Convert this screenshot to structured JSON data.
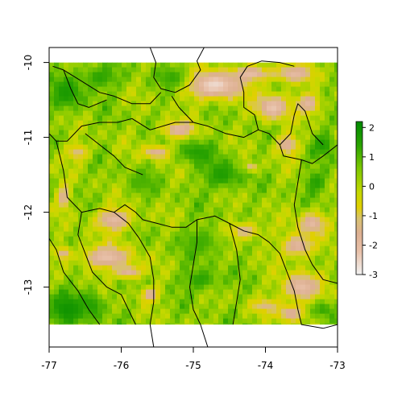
{
  "map": {
    "x_axis": {
      "range": [
        -77,
        -73
      ],
      "ticks": [
        {
          "value": -77,
          "label": "-77"
        },
        {
          "value": -76,
          "label": "-76"
        },
        {
          "value": -75,
          "label": "-75"
        },
        {
          "value": -74,
          "label": "-74"
        },
        {
          "value": -73,
          "label": "-73"
        }
      ]
    },
    "y_axis": {
      "range": [
        -13.8,
        -9.8
      ],
      "ticks": [
        {
          "value": -10,
          "label": "-10"
        },
        {
          "value": -11,
          "label": "-11"
        },
        {
          "value": -12,
          "label": "-12"
        },
        {
          "value": -13,
          "label": "-13"
        }
      ]
    },
    "raster_extent": {
      "lon": [
        -77,
        -73
      ],
      "lat": [
        -13.5,
        -10
      ]
    },
    "legend": {
      "range": [
        -3,
        2.2
      ],
      "ticks": [
        {
          "value": 2,
          "label": "2"
        },
        {
          "value": 1,
          "label": "1"
        },
        {
          "value": 0,
          "label": "0"
        },
        {
          "value": -1,
          "label": "-1"
        },
        {
          "value": -2,
          "label": "-2"
        },
        {
          "value": -3,
          "label": "-3"
        }
      ],
      "colors": [
        "#f2f2f2",
        "#e8c0a8",
        "#ddb092",
        "#d8c270",
        "#e0d000",
        "#c4d800",
        "#7ec800",
        "#2aa300",
        "#008a00"
      ],
      "stops": [
        -3,
        -2.2,
        -1.6,
        -1.1,
        -0.7,
        -0.2,
        0.6,
        1.4,
        2.2
      ]
    },
    "highlands": [
      {
        "lon": -74.7,
        "lat": -10.3,
        "rx": 0.55,
        "ry": 0.25,
        "v": -2.6
      },
      {
        "lon": -74.2,
        "lat": -10.15,
        "rx": 0.35,
        "ry": 0.12,
        "v": -2.1
      },
      {
        "lon": -73.6,
        "lat": -10.15,
        "rx": 0.35,
        "ry": 0.15,
        "v": -2.0
      },
      {
        "lon": -73.9,
        "lat": -10.6,
        "rx": 0.3,
        "ry": 0.22,
        "v": -2.3
      },
      {
        "lon": -73.4,
        "lat": -10.55,
        "rx": 0.22,
        "ry": 0.18,
        "v": -1.9
      },
      {
        "lon": -75.2,
        "lat": -10.9,
        "rx": 0.3,
        "ry": 0.15,
        "v": -2.0
      },
      {
        "lon": -75.5,
        "lat": -11.2,
        "rx": 0.25,
        "ry": 0.12,
        "v": -1.8
      },
      {
        "lon": -74.2,
        "lat": -11.4,
        "rx": 0.12,
        "ry": 0.08,
        "v": -1.7
      },
      {
        "lon": -73.7,
        "lat": -11.1,
        "rx": 0.2,
        "ry": 0.18,
        "v": -1.8
      },
      {
        "lon": -73.35,
        "lat": -12.15,
        "rx": 0.25,
        "ry": 0.2,
        "v": -2.0
      },
      {
        "lon": -73.55,
        "lat": -12.45,
        "rx": 0.3,
        "ry": 0.2,
        "v": -1.9
      },
      {
        "lon": -73.5,
        "lat": -13.0,
        "rx": 0.35,
        "ry": 0.25,
        "v": -2.1
      },
      {
        "lon": -73.65,
        "lat": -13.35,
        "rx": 0.25,
        "ry": 0.15,
        "v": -1.8
      },
      {
        "lon": -76.1,
        "lat": -12.1,
        "rx": 0.35,
        "ry": 0.2,
        "v": -2.0
      },
      {
        "lon": -76.2,
        "lat": -12.6,
        "rx": 0.45,
        "ry": 0.2,
        "v": -2.2
      },
      {
        "lon": -75.9,
        "lat": -12.8,
        "rx": 0.25,
        "ry": 0.12,
        "v": -1.8
      },
      {
        "lon": -76.8,
        "lat": -11.8,
        "rx": 0.12,
        "ry": 0.22,
        "v": -1.7
      },
      {
        "lon": -76.8,
        "lat": -12.55,
        "rx": 0.12,
        "ry": 0.12,
        "v": -1.7
      },
      {
        "lon": -75.6,
        "lat": -13.1,
        "rx": 0.18,
        "ry": 0.12,
        "v": -1.8
      },
      {
        "lon": -74.3,
        "lat": -12.25,
        "rx": 0.3,
        "ry": 0.15,
        "v": -1.5
      },
      {
        "lon": -74.0,
        "lat": -13.25,
        "rx": 0.25,
        "ry": 0.12,
        "v": -1.4
      },
      {
        "lon": -76.6,
        "lat": -11.2,
        "rx": 0.2,
        "ry": 0.15,
        "v": -1.3
      }
    ],
    "lowlands": [
      {
        "lon": -76.75,
        "lat": -10.4,
        "rx": 0.3,
        "ry": 0.3,
        "v": 1.7
      },
      {
        "lon": -76.3,
        "lat": -10.2,
        "rx": 0.35,
        "ry": 0.2,
        "v": 1.4
      },
      {
        "lon": -75.3,
        "lat": -10.2,
        "rx": 0.3,
        "ry": 0.2,
        "v": 1.3
      },
      {
        "lon": -76.75,
        "lat": -13.3,
        "rx": 0.35,
        "ry": 0.3,
        "v": 1.9
      },
      {
        "lon": -76.4,
        "lat": -13.25,
        "rx": 0.2,
        "ry": 0.25,
        "v": 1.5
      },
      {
        "lon": -74.95,
        "lat": -11.2,
        "rx": 0.35,
        "ry": 0.2,
        "v": 1.5
      },
      {
        "lon": -74.6,
        "lat": -11.5,
        "rx": 0.35,
        "ry": 0.25,
        "v": 1.6
      },
      {
        "lon": -73.2,
        "lat": -11.1,
        "rx": 0.2,
        "ry": 0.2,
        "v": 1.6
      },
      {
        "lon": -73.3,
        "lat": -11.6,
        "rx": 0.2,
        "ry": 0.2,
        "v": 1.5
      },
      {
        "lon": -74.9,
        "lat": -12.4,
        "rx": 0.4,
        "ry": 0.25,
        "v": 1.2
      },
      {
        "lon": -74.9,
        "lat": -12.9,
        "rx": 0.35,
        "ry": 0.2,
        "v": 1.4
      },
      {
        "lon": -73.2,
        "lat": -13.3,
        "rx": 0.2,
        "ry": 0.15,
        "v": 1.3
      },
      {
        "lon": -75.7,
        "lat": -11.6,
        "rx": 0.3,
        "ry": 0.2,
        "v": 1.1
      }
    ],
    "boundaries": [
      [
        [
          -75.6,
          -9.8
        ],
        [
          -75.52,
          -10.0
        ],
        [
          -75.55,
          -10.2
        ],
        [
          -75.45,
          -10.35
        ],
        [
          -75.25,
          -10.4
        ],
        [
          -75.05,
          -10.3
        ],
        [
          -74.9,
          -10.1
        ],
        [
          -74.95,
          -9.98
        ],
        [
          -74.85,
          -9.8
        ]
      ],
      [
        [
          -76.95,
          -10.05
        ],
        [
          -76.8,
          -10.1
        ],
        [
          -76.55,
          -10.25
        ],
        [
          -76.3,
          -10.4
        ],
        [
          -76.1,
          -10.45
        ],
        [
          -75.85,
          -10.55
        ],
        [
          -75.6,
          -10.55
        ],
        [
          -75.45,
          -10.4
        ]
      ],
      [
        [
          -76.8,
          -10.1
        ],
        [
          -76.7,
          -10.35
        ],
        [
          -76.6,
          -10.55
        ],
        [
          -76.45,
          -10.6
        ],
        [
          -76.2,
          -10.5
        ]
      ],
      [
        [
          -77.0,
          -10.95
        ],
        [
          -76.9,
          -11.05
        ],
        [
          -76.75,
          -11.05
        ],
        [
          -76.55,
          -10.85
        ],
        [
          -76.3,
          -10.8
        ],
        [
          -76.05,
          -10.8
        ],
        [
          -75.85,
          -10.75
        ],
        [
          -75.6,
          -10.9
        ],
        [
          -75.25,
          -10.8
        ],
        [
          -75.0,
          -10.8
        ],
        [
          -74.8,
          -10.85
        ],
        [
          -74.55,
          -10.95
        ],
        [
          -74.3,
          -11.0
        ],
        [
          -74.1,
          -10.9
        ],
        [
          -73.95,
          -10.95
        ],
        [
          -73.8,
          -11.1
        ],
        [
          -73.75,
          -11.25
        ],
        [
          -73.5,
          -11.3
        ],
        [
          -73.35,
          -11.35
        ],
        [
          -73.2,
          -11.25
        ],
        [
          -73.0,
          -11.1
        ]
      ],
      [
        [
          -75.3,
          -10.45
        ],
        [
          -75.2,
          -10.6
        ],
        [
          -75.0,
          -10.8
        ]
      ],
      [
        [
          -74.1,
          -10.9
        ],
        [
          -74.15,
          -10.7
        ],
        [
          -74.3,
          -10.6
        ],
        [
          -74.3,
          -10.4
        ],
        [
          -74.35,
          -10.2
        ],
        [
          -74.25,
          -10.05
        ],
        [
          -74.05,
          -9.98
        ],
        [
          -73.8,
          -10.0
        ],
        [
          -73.6,
          -10.05
        ]
      ],
      [
        [
          -73.8,
          -11.1
        ],
        [
          -73.65,
          -10.95
        ],
        [
          -73.6,
          -10.7
        ],
        [
          -73.55,
          -10.55
        ],
        [
          -73.45,
          -10.65
        ],
        [
          -73.35,
          -10.95
        ],
        [
          -73.2,
          -11.1
        ]
      ],
      [
        [
          -76.9,
          -11.05
        ],
        [
          -76.8,
          -11.45
        ],
        [
          -76.75,
          -11.8
        ],
        [
          -76.55,
          -12.0
        ],
        [
          -76.3,
          -11.95
        ],
        [
          -76.1,
          -12.0
        ],
        [
          -75.9,
          -12.15
        ],
        [
          -75.75,
          -12.35
        ],
        [
          -75.6,
          -12.6
        ],
        [
          -75.55,
          -12.9
        ],
        [
          -75.55,
          -13.2
        ],
        [
          -75.6,
          -13.5
        ],
        [
          -75.55,
          -13.8
        ]
      ],
      [
        [
          -76.1,
          -12.0
        ],
        [
          -75.95,
          -11.9
        ],
        [
          -75.8,
          -12.0
        ],
        [
          -75.7,
          -12.1
        ],
        [
          -75.5,
          -12.15
        ],
        [
          -75.3,
          -12.2
        ],
        [
          -75.1,
          -12.2
        ],
        [
          -74.95,
          -12.1
        ],
        [
          -74.7,
          -12.05
        ],
        [
          -74.5,
          -12.15
        ],
        [
          -74.3,
          -12.25
        ],
        [
          -74.1,
          -12.3
        ],
        [
          -73.95,
          -12.4
        ],
        [
          -73.8,
          -12.55
        ],
        [
          -73.7,
          -12.8
        ],
        [
          -73.6,
          -13.05
        ],
        [
          -73.55,
          -13.3
        ],
        [
          -73.5,
          -13.5
        ],
        [
          -73.2,
          -13.55
        ],
        [
          -73.0,
          -13.5
        ]
      ],
      [
        [
          -74.95,
          -12.1
        ],
        [
          -74.95,
          -12.4
        ],
        [
          -75.0,
          -12.7
        ],
        [
          -75.05,
          -13.0
        ],
        [
          -75.0,
          -13.3
        ],
        [
          -74.9,
          -13.5
        ],
        [
          -74.8,
          -13.8
        ]
      ],
      [
        [
          -74.5,
          -12.15
        ],
        [
          -74.4,
          -12.5
        ],
        [
          -74.35,
          -12.9
        ],
        [
          -74.4,
          -13.2
        ],
        [
          -74.45,
          -13.5
        ]
      ],
      [
        [
          -76.55,
          -12.0
        ],
        [
          -76.6,
          -12.3
        ],
        [
          -76.5,
          -12.55
        ],
        [
          -76.4,
          -12.8
        ],
        [
          -76.2,
          -13.0
        ],
        [
          -76.0,
          -13.1
        ],
        [
          -75.9,
          -13.3
        ],
        [
          -75.8,
          -13.5
        ]
      ],
      [
        [
          -77.0,
          -12.35
        ],
        [
          -76.9,
          -12.5
        ],
        [
          -76.8,
          -12.8
        ],
        [
          -76.6,
          -13.05
        ],
        [
          -76.45,
          -13.3
        ],
        [
          -76.3,
          -13.5
        ]
      ],
      [
        [
          -76.5,
          -10.95
        ],
        [
          -76.3,
          -11.1
        ],
        [
          -76.1,
          -11.25
        ],
        [
          -75.95,
          -11.4
        ],
        [
          -75.7,
          -11.5
        ]
      ],
      [
        [
          -73.5,
          -11.3
        ],
        [
          -73.55,
          -11.6
        ],
        [
          -73.6,
          -11.9
        ],
        [
          -73.55,
          -12.2
        ],
        [
          -73.45,
          -12.5
        ],
        [
          -73.35,
          -12.7
        ],
        [
          -73.2,
          -12.9
        ],
        [
          -73.0,
          -12.95
        ]
      ]
    ]
  }
}
